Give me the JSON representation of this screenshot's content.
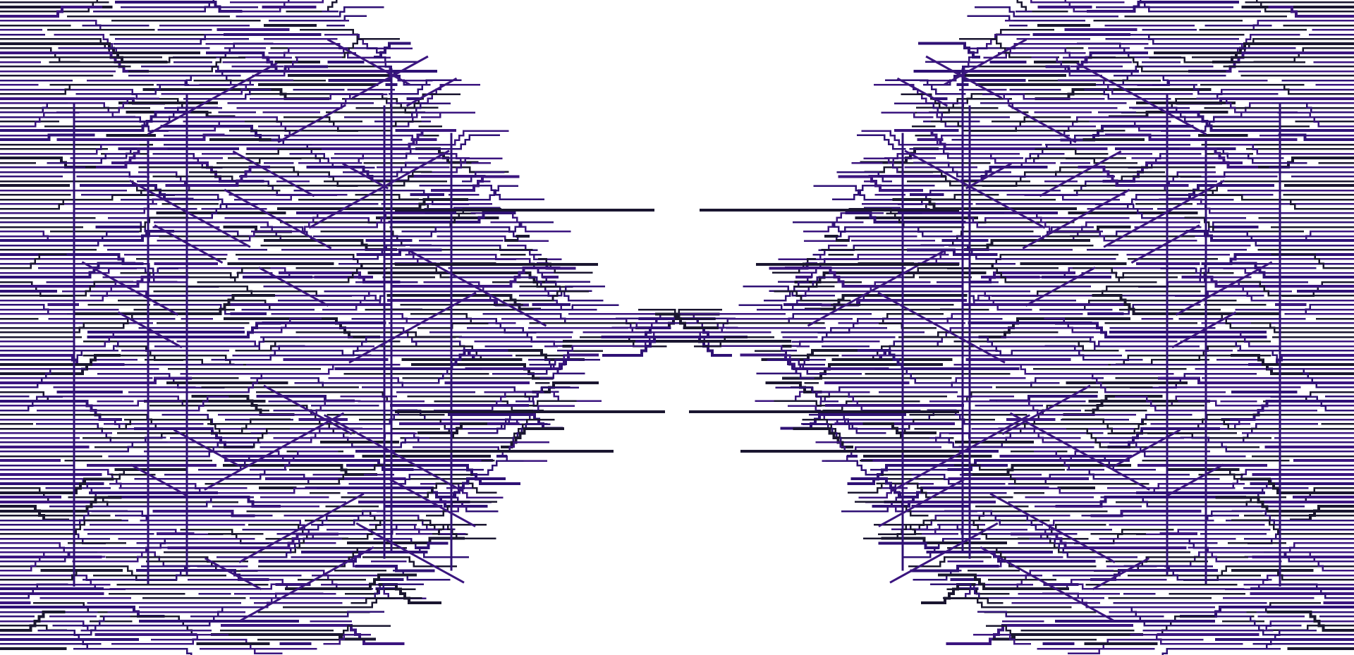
{
  "colors": {
    "background": "#ffffff",
    "trace_dark": "#1a1630",
    "trace_purple": "#2f1175",
    "trace_violet": "#3b157f"
  },
  "pattern": {
    "kind": "mirrored circuit-trace artwork",
    "halves": [
      "left",
      "right"
    ],
    "seed": 7,
    "text": []
  }
}
